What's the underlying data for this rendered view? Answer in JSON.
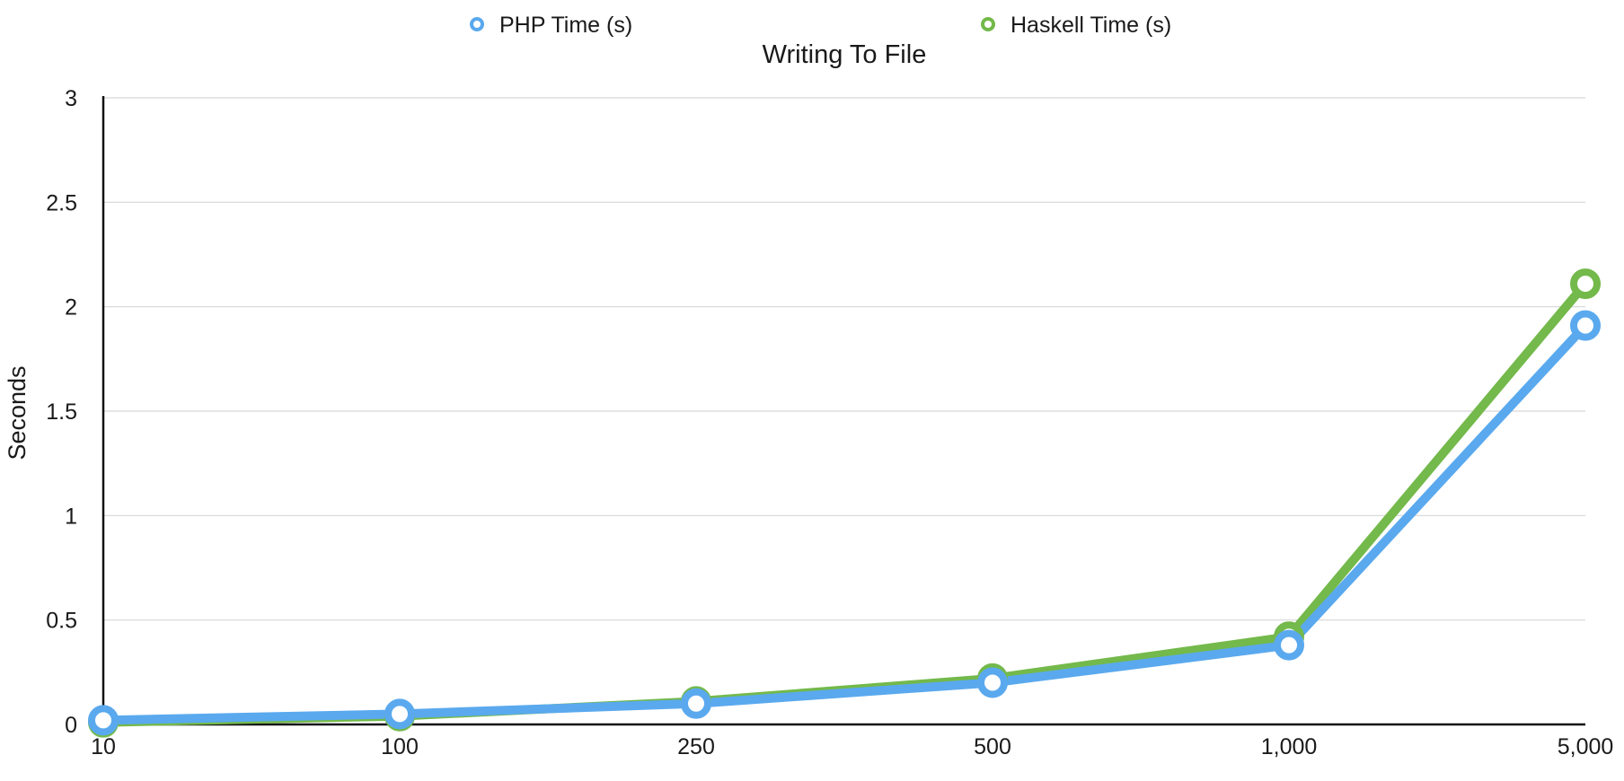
{
  "chart_data": {
    "type": "line",
    "title": "Writing To File",
    "xlabel": "",
    "ylabel": "Seconds",
    "categories": [
      "10",
      "100",
      "250",
      "500",
      "1,000",
      "5,000"
    ],
    "ylim": [
      0,
      3
    ],
    "yticks": [
      "0",
      "0.5",
      "1",
      "1.5",
      "2",
      "2.5",
      "3"
    ],
    "grid": true,
    "legend_position": "top",
    "series": [
      {
        "name": "PHP Time (s)",
        "color": "#5AA9EE",
        "values": [
          0.02,
          0.05,
          0.1,
          0.2,
          0.38,
          1.91
        ]
      },
      {
        "name": "Haskell Time (s)",
        "color": "#73B94B",
        "values": [
          0.01,
          0.04,
          0.11,
          0.22,
          0.42,
          2.11
        ]
      }
    ]
  }
}
